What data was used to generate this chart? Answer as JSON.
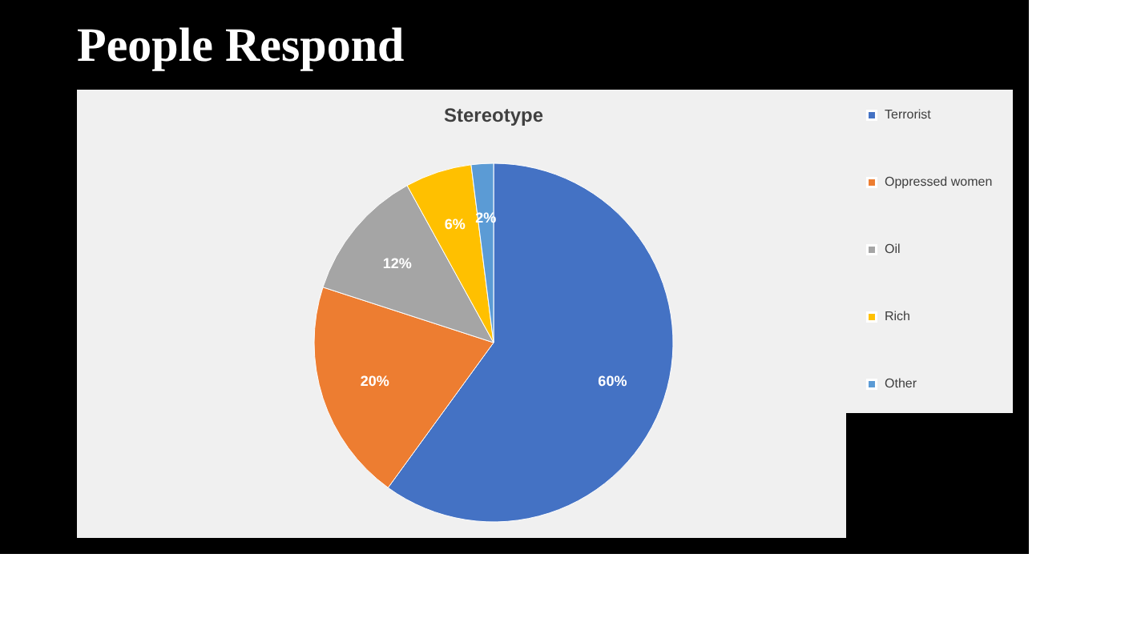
{
  "chart_data": {
    "type": "pie",
    "title": "People Respond",
    "subtitle": "Stereotype",
    "categories": [
      "Terrorist",
      "Oppressed women",
      "Oil",
      "Rich",
      "Other"
    ],
    "values": [
      60,
      20,
      12,
      6,
      2
    ],
    "colors": [
      "#4472c4",
      "#ed7d31",
      "#a5a5a5",
      "#ffc000",
      "#5b9bd5"
    ],
    "value_labels": [
      "60%",
      "20%",
      "12%",
      "6%",
      "2%"
    ],
    "legend": "right"
  }
}
